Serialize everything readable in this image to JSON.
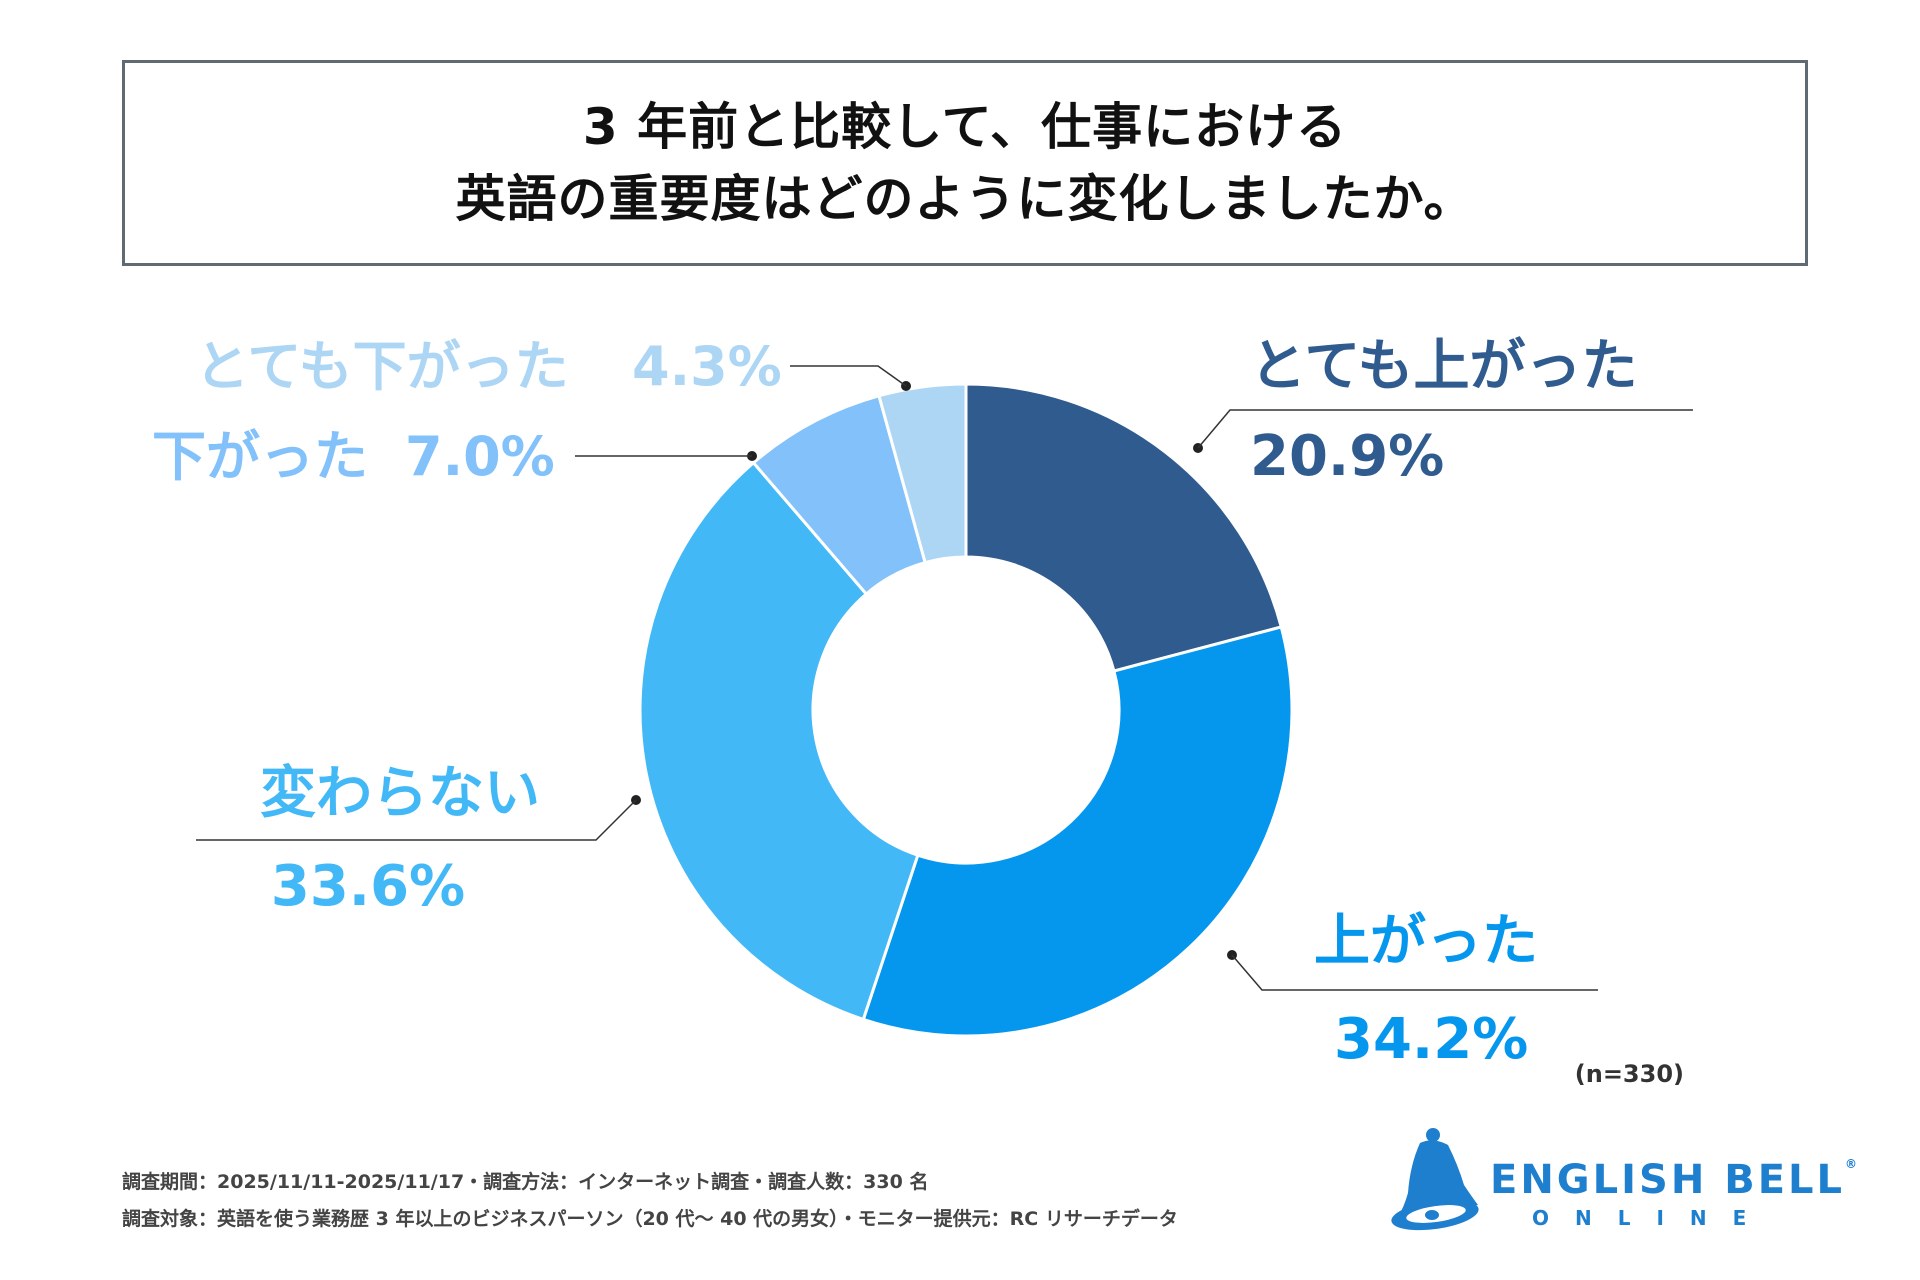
{
  "title": {
    "line1": "3 年前と比較して、仕事における",
    "line2": "英語の重要度はどのように変化しましたか。"
  },
  "chart_data": {
    "type": "pie",
    "donut": true,
    "categories": [
      "とても上がった",
      "上がった",
      "変わらない",
      "下がった",
      "とても下がった"
    ],
    "values": [
      20.9,
      34.2,
      33.6,
      7.0,
      4.3
    ],
    "labels": [
      "20.9%",
      "34.2%",
      "33.6%",
      "7.0%",
      "4.3%"
    ],
    "colors": [
      "#2f5b8f",
      "#0596ee",
      "#42b8f7",
      "#83c1fa",
      "#add6f5"
    ],
    "start": "12 o'clock, clockwise",
    "sample": "(n=330)"
  },
  "footnotes": {
    "line1": "調査期間：2025/11/11-2025/11/17・調査方法：インターネット調査・調査人数：330 名",
    "line2": "調査対象：英語を使う業務歴 3 年以上のビジネスパーソン（20 代～ 40 代の男女）・モニター提供元：RC リサーチデータ"
  },
  "logo": {
    "name": "ENGLISH BELL",
    "reg": "®",
    "sub": "ONLINE"
  }
}
